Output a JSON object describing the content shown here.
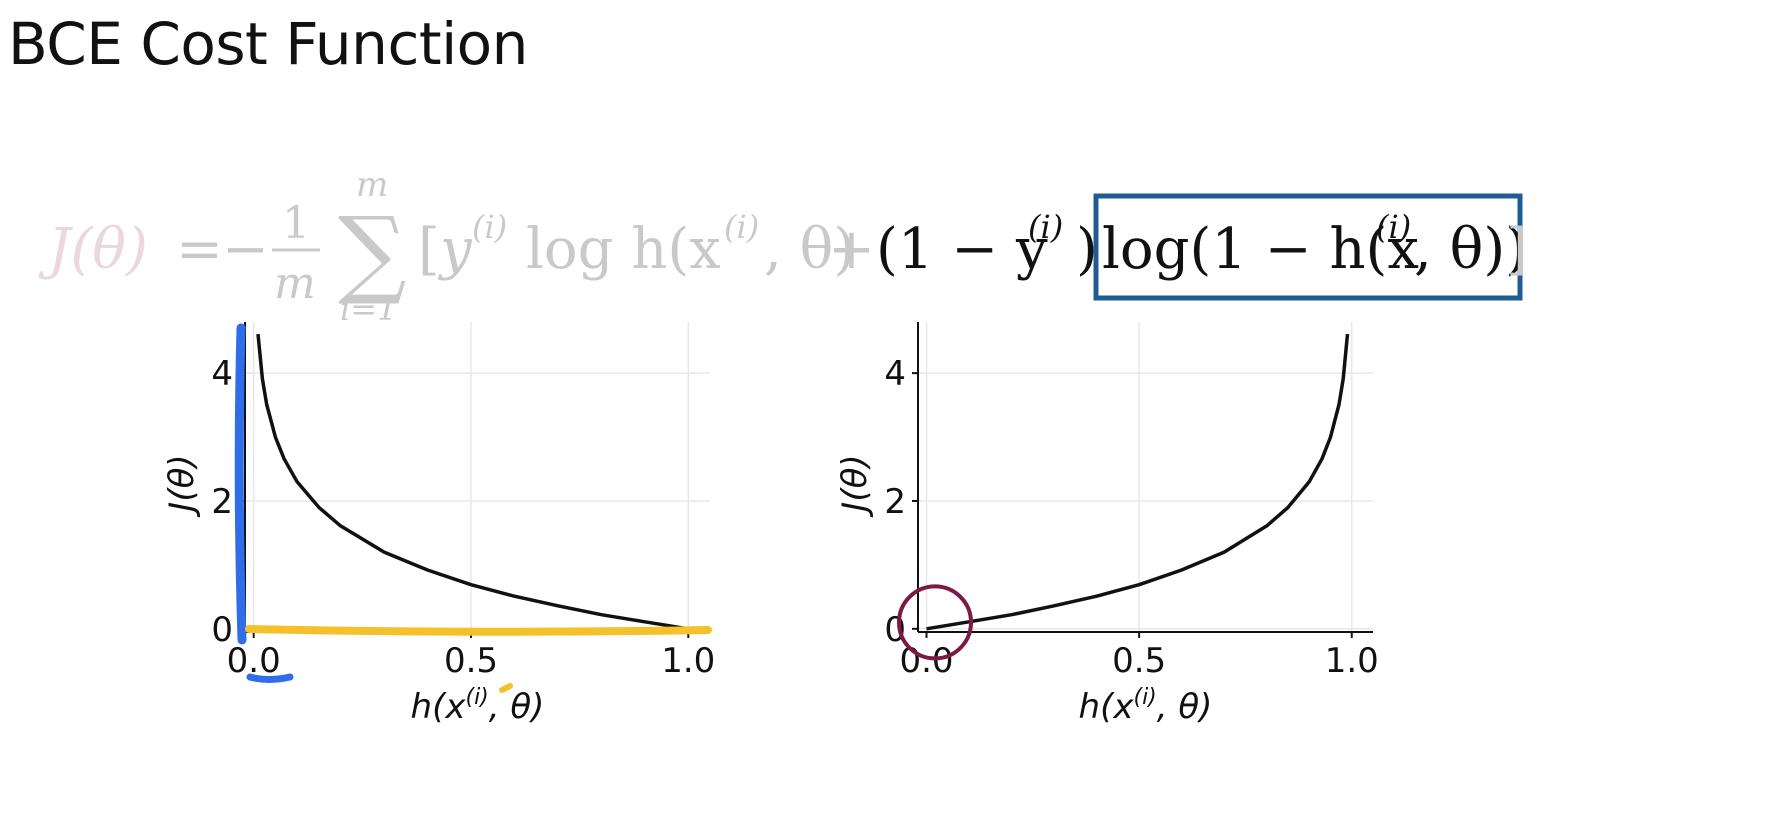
{
  "slide": {
    "title": "BCE Cost Function"
  },
  "formula": {
    "lhs": "J(θ)",
    "equals": "=",
    "minus": "−",
    "frac_num": "1",
    "frac_den": "m",
    "sum_symbol": "∑",
    "sum_upper": "m",
    "sum_lower": "i=1",
    "bracket_open": "[",
    "y_var": "y",
    "superscript_i": "(i)",
    "log_h": "log h(x",
    "theta_close": ", θ)",
    "plus": "+",
    "one_minus_y": "(1 − y",
    "close_paren": ")",
    "highlight_prefix": "log(1 − h(x",
    "highlight_suffix": ", θ))",
    "bracket_close": "]",
    "faded_color": "#c9c9c9",
    "lhs_color": "#ead7df",
    "text_color": "#111111",
    "box_color": "#1f5c93"
  },
  "chart_data": [
    {
      "type": "line",
      "xlabel": "h(x(i), θ)",
      "ylabel": "J(θ)",
      "xlim": [
        -0.02,
        1.05
      ],
      "ylim": [
        -0.05,
        4.8
      ],
      "xticks": [
        "0.0",
        "0.5",
        "1.0"
      ],
      "xtick_values": [
        0.0,
        0.5,
        1.0
      ],
      "yticks": [
        "0",
        "2",
        "4"
      ],
      "ytick_values": [
        0,
        2,
        4
      ],
      "grid": true,
      "function": "-log(x)",
      "x": [
        0.01,
        0.02,
        0.03,
        0.05,
        0.07,
        0.1,
        0.15,
        0.2,
        0.3,
        0.4,
        0.5,
        0.6,
        0.7,
        0.8,
        0.9,
        1.0
      ],
      "y": [
        4.61,
        3.91,
        3.51,
        3.0,
        2.66,
        2.3,
        1.9,
        1.61,
        1.2,
        0.92,
        0.69,
        0.51,
        0.36,
        0.22,
        0.11,
        0.0
      ],
      "annotations": [
        "blue-marker-y-axis",
        "yellow-marker-x-axis"
      ]
    },
    {
      "type": "line",
      "xlabel": "h(x(i), θ)",
      "ylabel": "J(θ)",
      "xlim": [
        -0.02,
        1.05
      ],
      "ylim": [
        -0.05,
        4.8
      ],
      "xticks": [
        "0.0",
        "0.5",
        "1.0"
      ],
      "xtick_values": [
        0.0,
        0.5,
        1.0
      ],
      "yticks": [
        "0",
        "2",
        "4"
      ],
      "ytick_values": [
        0,
        2,
        4
      ],
      "grid": true,
      "function": "-log(1-x)",
      "x": [
        0.0,
        0.1,
        0.2,
        0.3,
        0.4,
        0.5,
        0.6,
        0.7,
        0.8,
        0.85,
        0.9,
        0.93,
        0.95,
        0.97,
        0.98,
        0.99
      ],
      "y": [
        0.0,
        0.11,
        0.22,
        0.36,
        0.51,
        0.69,
        0.92,
        1.2,
        1.61,
        1.9,
        2.3,
        2.66,
        3.0,
        3.51,
        3.91,
        4.61
      ],
      "annotations": [
        "maroon-circle-at-origin"
      ]
    }
  ]
}
